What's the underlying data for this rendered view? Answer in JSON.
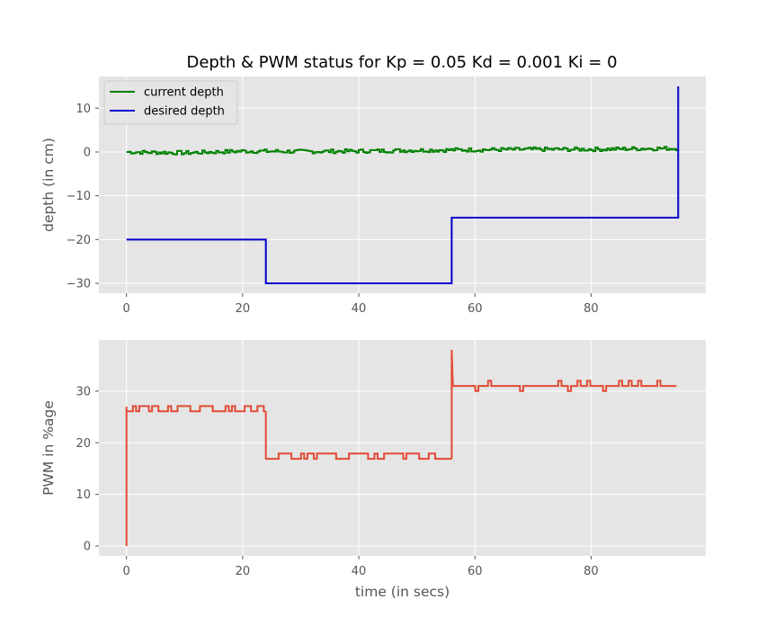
{
  "chart_data": [
    {
      "type": "line",
      "title": "Depth & PWM status for Kp = 0.05 Kd = 0.001 Ki = 0",
      "xlabel": "",
      "ylabel": "depth (in cm)",
      "xlim": [
        -4.75,
        99.75
      ],
      "ylim": [
        -32.25,
        17.25
      ],
      "xticks": [
        0,
        20,
        40,
        60,
        80
      ],
      "yticks": [
        -30,
        -20,
        -10,
        0,
        10
      ],
      "xtick_labels": [
        "0",
        "20",
        "40",
        "60",
        "80"
      ],
      "ytick_labels": [
        "−30",
        "−20",
        "−10",
        "0",
        "10"
      ],
      "grid": true,
      "legend_position": "upper-left",
      "series": [
        {
          "name": "current depth",
          "color": "#008000",
          "style": "noisy",
          "x": [
            0,
            10,
            20,
            30,
            40,
            50,
            60,
            70,
            80,
            90,
            95
          ],
          "y": [
            0.0,
            -0.2,
            0.2,
            0.1,
            0.2,
            0.4,
            0.5,
            0.6,
            0.6,
            0.8,
            0.8
          ]
        },
        {
          "name": "desired depth",
          "color": "#0000cc",
          "style": "step",
          "x": [
            0,
            24,
            24,
            56,
            56,
            95,
            95
          ],
          "y": [
            -20,
            -20,
            -30,
            -30,
            -15,
            -15,
            15
          ]
        }
      ]
    },
    {
      "type": "line",
      "title": "",
      "xlabel": "time (in secs)",
      "ylabel": "PWM in %age",
      "xlim": [
        -4.75,
        99.75
      ],
      "ylim": [
        -1.9,
        39.9
      ],
      "xticks": [
        0,
        20,
        40,
        60,
        80
      ],
      "yticks": [
        0,
        10,
        20,
        30
      ],
      "xtick_labels": [
        "0",
        "20",
        "40",
        "60",
        "80"
      ],
      "ytick_labels": [
        "0",
        "10",
        "20",
        "30"
      ],
      "grid": true,
      "series": [
        {
          "color": "#e24a33",
          "style": "step-noisy",
          "x": [
            0,
            0,
            24,
            24,
            56,
            56,
            56.2,
            95
          ],
          "y": [
            0,
            27,
            26,
            17,
            17,
            38,
            31,
            31
          ]
        }
      ]
    }
  ]
}
